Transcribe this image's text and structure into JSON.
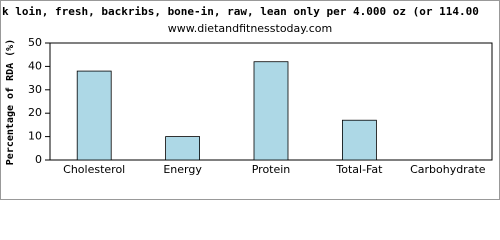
{
  "chart_data": {
    "type": "bar",
    "title": "k loin, fresh, backribs, bone-in, raw, lean only per 4.000 oz (or 114.00",
    "subtitle": "www.dietandfitnesstoday.com",
    "y_label": "Percentage of RDA (%)",
    "categories": [
      "Cholesterol",
      "Energy",
      "Protein",
      "Total-Fat",
      "Carbohydrate"
    ],
    "values": [
      38,
      10,
      42,
      17,
      0
    ],
    "color": "#add8e6",
    "ylim": [
      0,
      50
    ],
    "yticks": [
      0,
      10,
      20,
      30,
      40,
      50
    ],
    "grid": false
  }
}
